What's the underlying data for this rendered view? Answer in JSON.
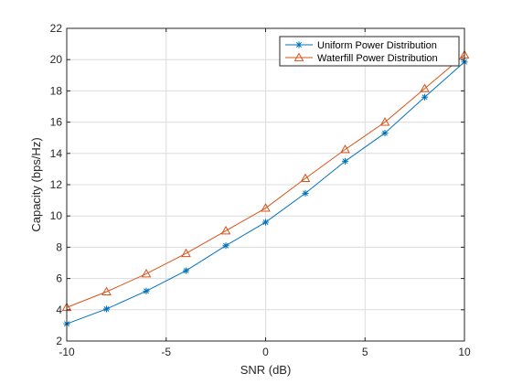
{
  "colors": {
    "background": "#ffffff",
    "axis": "#262626",
    "grid": "#dcdcdc",
    "series_1": "#0072BD",
    "series_2": "#D95319"
  },
  "chart_data": {
    "type": "line",
    "title": "",
    "xlabel": "SNR (dB)",
    "ylabel": "Capacity (bps/Hz)",
    "xlim": [
      -10,
      10
    ],
    "ylim": [
      2,
      22
    ],
    "xticks": [
      -10,
      -5,
      0,
      5,
      10
    ],
    "yticks": [
      2,
      4,
      6,
      8,
      10,
      12,
      14,
      16,
      18,
      20,
      22
    ],
    "grid": true,
    "legend_position": "top-right",
    "x": [
      -10,
      -8,
      -6,
      -4,
      -2,
      0,
      2,
      4,
      6,
      8,
      10
    ],
    "series": [
      {
        "name": "Uniform Power Distribution",
        "marker": "asterisk",
        "color": "#0072BD",
        "values": [
          3.1,
          4.05,
          5.2,
          6.5,
          8.1,
          9.6,
          11.45,
          13.5,
          15.3,
          17.6,
          19.85
        ]
      },
      {
        "name": "Waterfill Power Distribution",
        "marker": "triangle",
        "color": "#D95319",
        "values": [
          4.15,
          5.15,
          6.3,
          7.6,
          9.05,
          10.5,
          12.4,
          14.25,
          16.0,
          18.15,
          20.3
        ]
      }
    ]
  }
}
